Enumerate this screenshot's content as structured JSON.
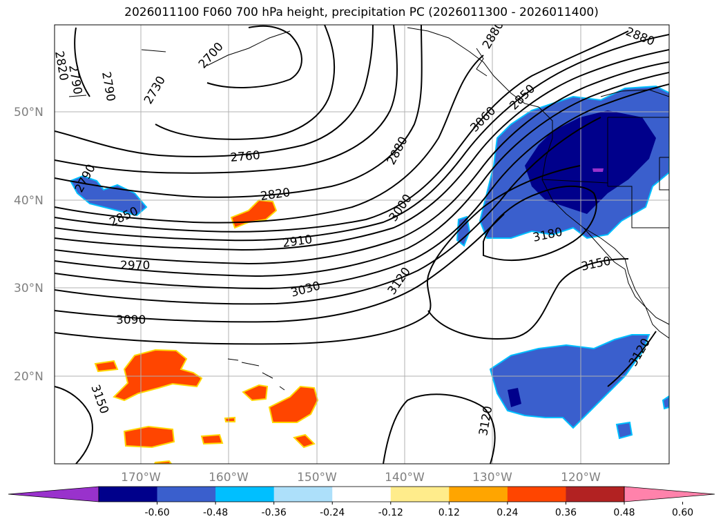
{
  "title": "2026011100 F060 700 hPa height, precipitation PC (2026011300 - 2026011400)",
  "lat_labels": [
    "50°N",
    "40°N",
    "30°N",
    "20°N"
  ],
  "lon_labels": [
    "170°W",
    "160°W",
    "150°W",
    "140°W",
    "130°W",
    "120°W"
  ],
  "contour_labels": [
    "2880",
    "2820",
    "2790",
    "2790",
    "2790",
    "2700",
    "2850",
    "2760",
    "2730",
    "2820",
    "2880",
    "2880",
    "3060",
    "2910",
    "2850",
    "2970",
    "3000",
    "3180",
    "3030",
    "3150",
    "3120",
    "3090",
    "3150",
    "3120",
    "3120"
  ],
  "colorbar": {
    "ticks": [
      "-0.60",
      "-0.48",
      "-0.36",
      "-0.24",
      "-0.12",
      "0.12",
      "0.24",
      "0.36",
      "0.48",
      "0.60"
    ],
    "colors": [
      "#9932CC",
      "#00008B",
      "#3A5FCD",
      "#00BFFF",
      "#ADE0FA",
      "#FFFFFF",
      "#FFEC8B",
      "#FFA500",
      "#FF4500",
      "#B22222",
      "#FF82AB"
    ]
  },
  "colors": {
    "positive_precip": "#FF4500",
    "positive_edge": "#FFA500",
    "negative_deep": "#00008B",
    "negative_mid": "#3A5FCD",
    "negative_edge": "#00BFFF",
    "contour": "#000000",
    "grid": "#B0B0B0"
  }
}
